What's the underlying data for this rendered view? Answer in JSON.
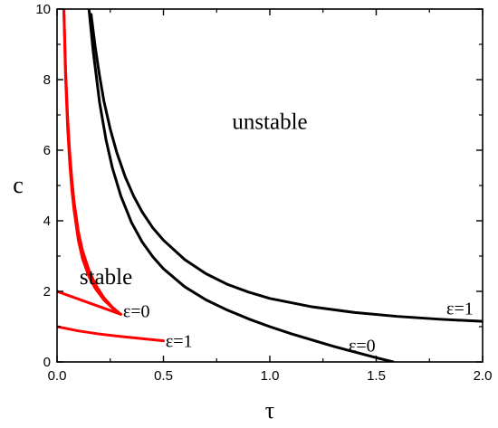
{
  "chart_data": {
    "type": "line",
    "xlabel": "τ",
    "ylabel": "c",
    "xlim": [
      0,
      2.0
    ],
    "ylim": [
      0,
      10
    ],
    "x_ticks": [
      "0.0",
      "0.5",
      "1.0",
      "1.5",
      "2.0"
    ],
    "y_ticks": [
      "0",
      "2",
      "4",
      "6",
      "8",
      "10"
    ],
    "grid": false,
    "region_labels": [
      {
        "text": "unstable",
        "x": 1.0,
        "y": 6.6
      },
      {
        "text": "stable",
        "x": 0.23,
        "y": 2.2
      }
    ],
    "curve_labels": [
      {
        "text": "ε=1",
        "x": 1.83,
        "y": 1.35,
        "anchor": "start"
      },
      {
        "text": "ε=0",
        "x": 1.37,
        "y": 0.3,
        "anchor": "start"
      },
      {
        "text": "ε=0",
        "x": 0.31,
        "y": 1.27,
        "anchor": "start"
      },
      {
        "text": "ε=1",
        "x": 0.51,
        "y": 0.42,
        "anchor": "start"
      }
    ],
    "series": [
      {
        "color": "#000000",
        "x": [
          0.16,
          0.18,
          0.2,
          0.22,
          0.25,
          0.28,
          0.32,
          0.36,
          0.4,
          0.45,
          0.5,
          0.6,
          0.7,
          0.8,
          0.9,
          1.0,
          1.2,
          1.4,
          1.6,
          1.8,
          2.0
        ],
        "y": [
          9.85,
          8.9,
          8.1,
          7.4,
          6.6,
          5.95,
          5.25,
          4.7,
          4.25,
          3.8,
          3.45,
          2.9,
          2.5,
          2.2,
          1.98,
          1.8,
          1.56,
          1.4,
          1.29,
          1.21,
          1.15
        ]
      },
      {
        "color": "#000000",
        "x": [
          0.15,
          0.17,
          0.2,
          0.23,
          0.26,
          0.3,
          0.35,
          0.4,
          0.45,
          0.5,
          0.6,
          0.7,
          0.8,
          0.9,
          1.0,
          1.1,
          1.2,
          1.3,
          1.4,
          1.5,
          1.58
        ],
        "y": [
          10.0,
          8.8,
          7.35,
          6.3,
          5.5,
          4.7,
          3.95,
          3.4,
          2.98,
          2.64,
          2.13,
          1.76,
          1.47,
          1.22,
          1.0,
          0.8,
          0.62,
          0.44,
          0.28,
          0.12,
          0.0
        ]
      },
      {
        "color": "#ff0000",
        "x": [
          0.032,
          0.04,
          0.05,
          0.06,
          0.07,
          0.08,
          0.1,
          0.12,
          0.15,
          0.18,
          0.22,
          0.26,
          0.3
        ],
        "y": [
          10.0,
          8.3,
          6.9,
          5.9,
          5.15,
          4.55,
          3.7,
          3.15,
          2.6,
          2.2,
          1.82,
          1.55,
          1.35
        ]
      },
      {
        "color": "#ff0000",
        "x": [
          0.032,
          0.04,
          0.05,
          0.06,
          0.07,
          0.08,
          0.1,
          0.12,
          0.15,
          0.18,
          0.22,
          0.26,
          0.28
        ],
        "y": [
          10.0,
          8.1,
          6.6,
          5.6,
          4.85,
          4.3,
          3.45,
          2.92,
          2.42,
          2.08,
          1.76,
          1.53,
          1.43
        ]
      },
      {
        "color": "#ff0000",
        "x": [
          0.0,
          0.3
        ],
        "y": [
          2.0,
          1.35
        ]
      },
      {
        "color": "#ff0000",
        "x": [
          0.0,
          0.1,
          0.2,
          0.3,
          0.4,
          0.5
        ],
        "y": [
          1.0,
          0.88,
          0.79,
          0.72,
          0.66,
          0.6
        ]
      }
    ]
  }
}
